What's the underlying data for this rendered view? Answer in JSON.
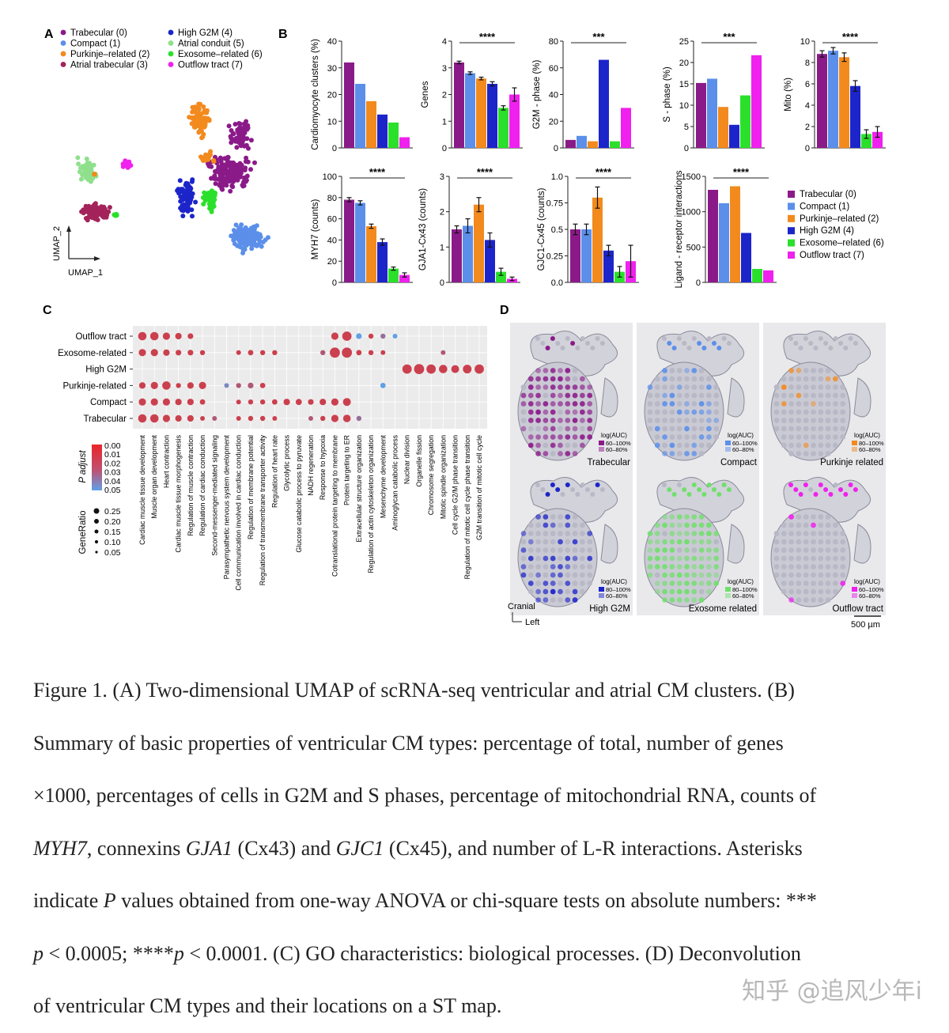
{
  "panel_labels": {
    "a": "A",
    "b": "B",
    "c": "C",
    "d": "D"
  },
  "colors": {
    "trabecular": "#8B1A89",
    "compact": "#5B8FEA",
    "purkinje": "#F28A1E",
    "atrial_trabecular": "#A3235A",
    "high_g2m": "#1C25C9",
    "atrial_conduit": "#8FE08C",
    "exosome": "#2BE02B",
    "outflow": "#F020EE"
  },
  "umap": {
    "legend": [
      {
        "label": "Trabecular (0)",
        "color": "#8B1A89"
      },
      {
        "label": "Compact (1)",
        "color": "#5B8FEA"
      },
      {
        "label": "Purkinje–related (2)",
        "color": "#F28A1E"
      },
      {
        "label": "Atrial trabecular (3)",
        "color": "#A3235A"
      },
      {
        "label": "High G2M (4)",
        "color": "#1C25C9"
      },
      {
        "label": "Atrial conduit (5)",
        "color": "#8FE08C"
      },
      {
        "label": "Exosome–related (6)",
        "color": "#2BE02B"
      },
      {
        "label": "Outflow tract (7)",
        "color": "#F020EE"
      }
    ],
    "xlabel": "UMAP_1",
    "ylabel": "UMAP_2"
  },
  "chart_data": [
    {
      "type": "bar",
      "ylabel": "Cardiomyocyte clusters (%)",
      "ylim": [
        0,
        40
      ],
      "yticks": [
        0,
        10,
        20,
        30,
        40
      ],
      "values": [
        32,
        24,
        17.5,
        12.5,
        9.5,
        4
      ],
      "errors": null,
      "sig": ""
    },
    {
      "type": "bar",
      "ylabel": "Genes",
      "ylim": [
        0,
        4
      ],
      "yticks": [
        0,
        1,
        2,
        3,
        4
      ],
      "values": [
        3.2,
        2.8,
        2.6,
        2.4,
        1.5,
        2.0
      ],
      "errors": [
        0.05,
        0.05,
        0.05,
        0.08,
        0.08,
        0.25
      ],
      "sig": "****"
    },
    {
      "type": "bar",
      "ylabel": "G2M - phase (%)",
      "ylim": [
        0,
        80
      ],
      "yticks": [
        0,
        20,
        40,
        60,
        80
      ],
      "values": [
        6,
        9,
        5,
        66,
        5,
        30
      ],
      "errors": null,
      "sig": "***"
    },
    {
      "type": "bar",
      "ylabel": "S - phase (%)",
      "ylim": [
        0,
        25
      ],
      "yticks": [
        0,
        5,
        10,
        15,
        20,
        25
      ],
      "values": [
        15.2,
        16.2,
        9.6,
        5.4,
        12.3,
        21.7
      ],
      "errors": null,
      "sig": "***"
    },
    {
      "type": "bar",
      "ylabel": "Mito (%)",
      "ylim": [
        0,
        10
      ],
      "yticks": [
        0,
        2,
        4,
        6,
        8,
        10
      ],
      "values": [
        8.8,
        9.1,
        8.5,
        5.8,
        1.3,
        1.5
      ],
      "errors": [
        0.3,
        0.3,
        0.4,
        0.5,
        0.4,
        0.5
      ],
      "sig": "****"
    },
    {
      "type": "bar",
      "ylabel": "MYH7 (counts)",
      "ylim": [
        0,
        100
      ],
      "yticks": [
        0,
        20,
        40,
        60,
        80,
        100
      ],
      "values": [
        78,
        75,
        53,
        38,
        13,
        7
      ],
      "errors": [
        2,
        2,
        2,
        3,
        1.5,
        2
      ],
      "sig": "****"
    },
    {
      "type": "bar",
      "ylabel": "GJA1-Cx43 (counts)",
      "ylim": [
        0,
        3
      ],
      "yticks": [
        0,
        1,
        2,
        3
      ],
      "values": [
        1.5,
        1.6,
        2.2,
        1.2,
        0.3,
        0.1
      ],
      "errors": [
        0.1,
        0.2,
        0.2,
        0.2,
        0.1,
        0.05
      ],
      "sig": "****"
    },
    {
      "type": "bar",
      "ylabel": "GJC1-Cx45 (counts)",
      "ylim": [
        0,
        1.0
      ],
      "yticks": [
        0,
        0.25,
        0.5,
        0.75,
        1.0
      ],
      "yticklabels": [
        "0.0",
        "0.25",
        "0.5",
        "0.75",
        "1.0"
      ],
      "values": [
        0.5,
        0.5,
        0.8,
        0.3,
        0.1,
        0.2
      ],
      "errors": [
        0.05,
        0.05,
        0.1,
        0.05,
        0.05,
        0.15
      ],
      "sig": "****"
    },
    {
      "type": "bar",
      "ylabel": "Ligand - receptor interactions",
      "ylim": [
        0,
        1500
      ],
      "yticks": [
        0,
        500,
        1000,
        1500
      ],
      "values": [
        1310,
        1120,
        1360,
        700,
        190,
        170
      ],
      "errors": null,
      "sig": "****"
    }
  ],
  "bar_legend": [
    {
      "label": "Trabecular (0)",
      "color": "#8B1A89"
    },
    {
      "label": "Compact (1)",
      "color": "#5B8FEA"
    },
    {
      "label": "Purkinje–related (2)",
      "color": "#F28A1E"
    },
    {
      "label": "High G2M (4)",
      "color": "#1C25C9"
    },
    {
      "label": "Exosome–related (6)",
      "color": "#2BE02B"
    },
    {
      "label": "Outflow tract (7)",
      "color": "#F020EE"
    }
  ],
  "dotplot": {
    "rows": [
      "Outflow tract",
      "Exosome-related",
      "High G2M",
      "Purkinje-related",
      "Compact",
      "Trabecular"
    ],
    "columns": [
      "Cardiac muscle tissue development",
      "Muscle organ development",
      "Heart contraction",
      "Cardiac muscle tissue morphogenesis",
      "Regulation of muscle contraction",
      "Regulation of cardiac conduction",
      "Second-messenger-mediated signaling",
      "Parasympathetic nervous system development",
      "Cell communication involved in cardiac conduction",
      "Regulation of membrane potential",
      "Regulation of transmembrane transporter activity",
      "Regulation of heart rate",
      "Glycolytic process",
      "Glucose catabolic process to pyruvate",
      "NADH regeneration",
      "Response to hypoxia",
      "Cotranslational protein targeting to membrane",
      "Protein targeting to ER",
      "Extracellular structure organization",
      "Regulation of actin cytoskeleton organization",
      "Mesenchyme development",
      "Aminoglycan catabolic process",
      "Nuclear division",
      "Organelle fission",
      "Chromosome segregation",
      "Mitotic spindle organization",
      "Cell cycle G2/M phase transition",
      "Regulation of mitotic cell cycle phase transition",
      "G2M transition of mitotic cell cycle"
    ],
    "padj_title": "P adjust",
    "padj_ticks": [
      "0.00",
      "0.01",
      "0.02",
      "0.03",
      "0.04",
      "0.05"
    ],
    "generatio_title": "GeneRatio",
    "generatio_ticks": [
      "0.25",
      "0.20",
      "0.15",
      "0.10",
      "0.05"
    ],
    "dots": [
      [
        0,
        0,
        0.15,
        0.01
      ],
      [
        0,
        1,
        0.15,
        0.01
      ],
      [
        0,
        2,
        0.12,
        0.01
      ],
      [
        0,
        3,
        0.1,
        0.01
      ],
      [
        0,
        4,
        0.08,
        0.01
      ],
      [
        0,
        16,
        0.12,
        0.01
      ],
      [
        0,
        17,
        0.18,
        0.01
      ],
      [
        0,
        18,
        0.08,
        0.05
      ],
      [
        0,
        19,
        0.06,
        0.01
      ],
      [
        0,
        20,
        0.06,
        0.03
      ],
      [
        0,
        21,
        0.05,
        0.05
      ],
      [
        1,
        0,
        0.12,
        0.01
      ],
      [
        1,
        1,
        0.12,
        0.01
      ],
      [
        1,
        2,
        0.1,
        0.01
      ],
      [
        1,
        3,
        0.08,
        0.01
      ],
      [
        1,
        4,
        0.08,
        0.01
      ],
      [
        1,
        5,
        0.06,
        0.01
      ],
      [
        1,
        8,
        0.05,
        0.01
      ],
      [
        1,
        9,
        0.07,
        0.01
      ],
      [
        1,
        10,
        0.06,
        0.01
      ],
      [
        1,
        11,
        0.06,
        0.01
      ],
      [
        1,
        15,
        0.06,
        0.02
      ],
      [
        1,
        16,
        0.2,
        0.01
      ],
      [
        1,
        17,
        0.2,
        0.01
      ],
      [
        1,
        18,
        0.07,
        0.01
      ],
      [
        1,
        19,
        0.06,
        0.01
      ],
      [
        1,
        20,
        0.05,
        0.01
      ],
      [
        1,
        25,
        0.05,
        0.02
      ],
      [
        2,
        22,
        0.18,
        0.01
      ],
      [
        2,
        23,
        0.2,
        0.01
      ],
      [
        2,
        24,
        0.18,
        0.01
      ],
      [
        2,
        25,
        0.15,
        0.01
      ],
      [
        2,
        26,
        0.14,
        0.01
      ],
      [
        2,
        27,
        0.16,
        0.01
      ],
      [
        2,
        28,
        0.18,
        0.01
      ],
      [
        3,
        0,
        0.1,
        0.01
      ],
      [
        3,
        1,
        0.12,
        0.01
      ],
      [
        3,
        2,
        0.15,
        0.01
      ],
      [
        3,
        3,
        0.06,
        0.01
      ],
      [
        3,
        4,
        0.1,
        0.01
      ],
      [
        3,
        5,
        0.12,
        0.01
      ],
      [
        3,
        7,
        0.05,
        0.04
      ],
      [
        3,
        8,
        0.06,
        0.02
      ],
      [
        3,
        9,
        0.08,
        0.02
      ],
      [
        3,
        10,
        0.07,
        0.01
      ],
      [
        3,
        20,
        0.07,
        0.05
      ],
      [
        4,
        0,
        0.12,
        0.01
      ],
      [
        4,
        1,
        0.12,
        0.01
      ],
      [
        4,
        2,
        0.12,
        0.01
      ],
      [
        4,
        3,
        0.1,
        0.01
      ],
      [
        4,
        4,
        0.1,
        0.01
      ],
      [
        4,
        5,
        0.07,
        0.01
      ],
      [
        4,
        8,
        0.05,
        0.01
      ],
      [
        4,
        9,
        0.06,
        0.01
      ],
      [
        4,
        10,
        0.06,
        0.01
      ],
      [
        4,
        11,
        0.07,
        0.01
      ],
      [
        4,
        12,
        0.1,
        0.01
      ],
      [
        4,
        13,
        0.09,
        0.01
      ],
      [
        4,
        14,
        0.08,
        0.01
      ],
      [
        4,
        15,
        0.1,
        0.01
      ],
      [
        4,
        16,
        0.12,
        0.01
      ],
      [
        4,
        17,
        0.14,
        0.01
      ],
      [
        5,
        0,
        0.15,
        0.01
      ],
      [
        5,
        1,
        0.15,
        0.01
      ],
      [
        5,
        2,
        0.12,
        0.01
      ],
      [
        5,
        3,
        0.1,
        0.01
      ],
      [
        5,
        4,
        0.1,
        0.01
      ],
      [
        5,
        5,
        0.05,
        0.01
      ],
      [
        5,
        6,
        0.05,
        0.02
      ],
      [
        5,
        8,
        0.05,
        0.01
      ],
      [
        5,
        9,
        0.06,
        0.01
      ],
      [
        5,
        10,
        0.06,
        0.01
      ],
      [
        5,
        11,
        0.05,
        0.01
      ],
      [
        5,
        14,
        0.05,
        0.02
      ],
      [
        5,
        15,
        0.06,
        0.01
      ],
      [
        5,
        16,
        0.12,
        0.01
      ],
      [
        5,
        17,
        0.13,
        0.01
      ],
      [
        5,
        18,
        0.06,
        0.03
      ]
    ]
  },
  "spatial": {
    "tiles": [
      {
        "label": "Trabecular",
        "color": "#8B1A89",
        "legend_title": "log(AUC)",
        "legend_hi": "60–100%",
        "legend_lo": "60–80%"
      },
      {
        "label": "Compact",
        "color": "#5B8FEA",
        "legend_title": "log(AUC)",
        "legend_hi": "60–100%",
        "legend_lo": "60–80%"
      },
      {
        "label": "Purkinje related",
        "color": "#F28A1E",
        "legend_title": "log(AUC)",
        "legend_hi": "80–100%",
        "legend_lo": "60–80%"
      },
      {
        "label": "High G2M",
        "color": "#1C25C9",
        "legend_title": "log(AUC)",
        "legend_hi": "80–100%",
        "legend_lo": "60–80%"
      },
      {
        "label": "Exosome related",
        "color": "#6FE06A",
        "legend_title": "log(AUC)",
        "legend_hi": "80–100%",
        "legend_lo": "60–80%"
      },
      {
        "label": "Outflow tract",
        "color": "#F020EE",
        "legend_title": "log(AUC)",
        "legend_hi": "60–100%",
        "legend_lo": "60–80%"
      }
    ],
    "cranial": "Cranial",
    "left": "Left",
    "scale": "500 µm"
  },
  "caption": {
    "l1": "Figure 1. (A) Two-dimensional UMAP of scRNA-seq ventricular and atrial CM clusters. (B)",
    "l2": "Summary of basic properties of ventricular CM types: percentage of total, number of genes",
    "l3": "×1000, percentages of cells in G2M and S phases, percentage of mitochondrial RNA, counts of",
    "l4_a": "MYH7",
    "l4_b": ", connexins ",
    "l4_c": "GJA1",
    "l4_d": " (Cx43) and ",
    "l4_e": "GJC1",
    "l4_f": " (Cx45), and number of L-R interactions. Asterisks",
    "l5_a": "indicate ",
    "l5_b": "P",
    "l5_c": " values obtained from one-way ANOVA or chi-square tests on absolute numbers: ***",
    "l6_a": "p",
    "l6_b": " < 0.0005; ****",
    "l6_c": "p",
    "l6_d": " < 0.0001. (C) GO characteristics: biological processes. (D) Deconvolution",
    "l7": "of ventricular CM types and their locations on a ST map."
  },
  "watermark": "知乎 @追风少年i"
}
